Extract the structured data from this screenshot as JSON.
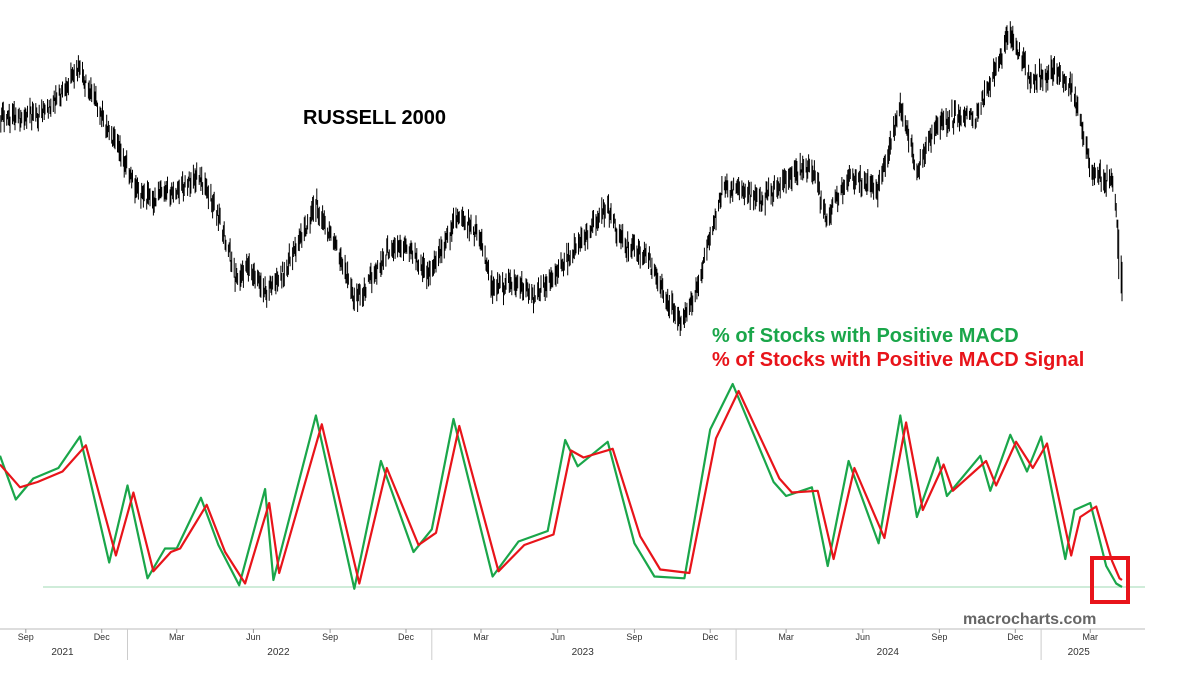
{
  "chart_data": [
    {
      "type": "line",
      "title": "RUSSELL 2000",
      "note": "values are relative index levels read from the unlabeled price panel",
      "series": [
        {
          "values": [
            {
              "date": "2021-08-01",
              "value": 73
            },
            {
              "date": "2021-09-01",
              "value": 72
            },
            {
              "date": "2021-10-01",
              "value": 75
            },
            {
              "date": "2021-11-01",
              "value": 88
            },
            {
              "date": "2021-11-20",
              "value": 80
            },
            {
              "date": "2021-12-10",
              "value": 67
            },
            {
              "date": "2022-01-15",
              "value": 47
            },
            {
              "date": "2022-02-01",
              "value": 45
            },
            {
              "date": "2022-03-01",
              "value": 48
            },
            {
              "date": "2022-03-28",
              "value": 53
            },
            {
              "date": "2022-04-20",
              "value": 40
            },
            {
              "date": "2022-05-12",
              "value": 18
            },
            {
              "date": "2022-05-25",
              "value": 22
            },
            {
              "date": "2022-06-17",
              "value": 14
            },
            {
              "date": "2022-07-10",
              "value": 22
            },
            {
              "date": "2022-08-16",
              "value": 43
            },
            {
              "date": "2022-09-10",
              "value": 28
            },
            {
              "date": "2022-09-30",
              "value": 12
            },
            {
              "date": "2022-10-15",
              "value": 16
            },
            {
              "date": "2022-11-10",
              "value": 28
            },
            {
              "date": "2022-12-01",
              "value": 30
            },
            {
              "date": "2022-12-28",
              "value": 20
            },
            {
              "date": "2023-02-02",
              "value": 40
            },
            {
              "date": "2023-03-01",
              "value": 32
            },
            {
              "date": "2023-03-15",
              "value": 15
            },
            {
              "date": "2023-04-10",
              "value": 17
            },
            {
              "date": "2023-05-04",
              "value": 13
            },
            {
              "date": "2023-05-30",
              "value": 20
            },
            {
              "date": "2023-07-31",
              "value": 42
            },
            {
              "date": "2023-08-20",
              "value": 30
            },
            {
              "date": "2023-09-15",
              "value": 26
            },
            {
              "date": "2023-10-27",
              "value": 3
            },
            {
              "date": "2023-11-15",
              "value": 16
            },
            {
              "date": "2023-12-15",
              "value": 48
            },
            {
              "date": "2024-01-10",
              "value": 48
            },
            {
              "date": "2024-02-01",
              "value": 45
            },
            {
              "date": "2024-03-31",
              "value": 57
            },
            {
              "date": "2024-04-19",
              "value": 38
            },
            {
              "date": "2024-05-15",
              "value": 53
            },
            {
              "date": "2024-06-20",
              "value": 48
            },
            {
              "date": "2024-07-16",
              "value": 76
            },
            {
              "date": "2024-08-05",
              "value": 55
            },
            {
              "date": "2024-08-30",
              "value": 70
            },
            {
              "date": "2024-09-15",
              "value": 72
            },
            {
              "date": "2024-10-15",
              "value": 72
            },
            {
              "date": "2024-11-25",
              "value": 100
            },
            {
              "date": "2024-12-20",
              "value": 84
            },
            {
              "date": "2025-01-20",
              "value": 88
            },
            {
              "date": "2025-02-10",
              "value": 80
            },
            {
              "date": "2025-03-01",
              "value": 55
            },
            {
              "date": "2025-03-28",
              "value": 50
            },
            {
              "date": "2025-04-08",
              "value": 22
            }
          ]
        }
      ]
    },
    {
      "type": "line",
      "title": "",
      "note": "oscillator values in percent (0-100 scale), panel has no printed value axis",
      "series": [
        {
          "name": "% of Stocks with Positive MACD",
          "color": "#1aa64a",
          "values": [
            {
              "date": "2021-08-01",
              "value": 75
            },
            {
              "date": "2021-08-20",
              "value": 50
            },
            {
              "date": "2021-09-10",
              "value": 62
            },
            {
              "date": "2021-10-10",
              "value": 68
            },
            {
              "date": "2021-11-05",
              "value": 86
            },
            {
              "date": "2021-12-10",
              "value": 14
            },
            {
              "date": "2022-01-01",
              "value": 58
            },
            {
              "date": "2022-01-25",
              "value": 5
            },
            {
              "date": "2022-02-15",
              "value": 22
            },
            {
              "date": "2022-03-01",
              "value": 22
            },
            {
              "date": "2022-03-30",
              "value": 51
            },
            {
              "date": "2022-04-20",
              "value": 24
            },
            {
              "date": "2022-05-15",
              "value": 1
            },
            {
              "date": "2022-06-15",
              "value": 56
            },
            {
              "date": "2022-06-25",
              "value": 4
            },
            {
              "date": "2022-08-15",
              "value": 98
            },
            {
              "date": "2022-09-30",
              "value": -1
            },
            {
              "date": "2022-11-01",
              "value": 72
            },
            {
              "date": "2022-12-10",
              "value": 20
            },
            {
              "date": "2023-01-01",
              "value": 33
            },
            {
              "date": "2023-01-27",
              "value": 96
            },
            {
              "date": "2023-03-15",
              "value": 6
            },
            {
              "date": "2023-04-15",
              "value": 26
            },
            {
              "date": "2023-05-20",
              "value": 32
            },
            {
              "date": "2023-06-10",
              "value": 84
            },
            {
              "date": "2023-06-25",
              "value": 69
            },
            {
              "date": "2023-07-31",
              "value": 83
            },
            {
              "date": "2023-09-01",
              "value": 25
            },
            {
              "date": "2023-09-25",
              "value": 6
            },
            {
              "date": "2023-10-31",
              "value": 5
            },
            {
              "date": "2023-12-01",
              "value": 90
            },
            {
              "date": "2023-12-28",
              "value": 116
            },
            {
              "date": "2024-02-15",
              "value": 60
            },
            {
              "date": "2024-03-01",
              "value": 52
            },
            {
              "date": "2024-04-01",
              "value": 57
            },
            {
              "date": "2024-04-20",
              "value": 12
            },
            {
              "date": "2024-05-15",
              "value": 72
            },
            {
              "date": "2024-06-20",
              "value": 25
            },
            {
              "date": "2024-07-16",
              "value": 98
            },
            {
              "date": "2024-08-05",
              "value": 40
            },
            {
              "date": "2024-08-30",
              "value": 74
            },
            {
              "date": "2024-09-10",
              "value": 52
            },
            {
              "date": "2024-10-20",
              "value": 75
            },
            {
              "date": "2024-11-01",
              "value": 55
            },
            {
              "date": "2024-11-25",
              "value": 87
            },
            {
              "date": "2024-12-15",
              "value": 66
            },
            {
              "date": "2025-01-01",
              "value": 86
            },
            {
              "date": "2025-01-30",
              "value": 16
            },
            {
              "date": "2025-02-10",
              "value": 44
            },
            {
              "date": "2025-03-01",
              "value": 48
            },
            {
              "date": "2025-03-20",
              "value": 12
            },
            {
              "date": "2025-04-01",
              "value": 2
            },
            {
              "date": "2025-04-08",
              "value": 0
            }
          ]
        },
        {
          "name": "% of Stocks with Positive MACD Signal",
          "color": "#e8141a",
          "values": [
            {
              "date": "2021-08-01",
              "value": 70
            },
            {
              "date": "2021-08-25",
              "value": 57
            },
            {
              "date": "2021-09-15",
              "value": 60
            },
            {
              "date": "2021-10-15",
              "value": 66
            },
            {
              "date": "2021-11-12",
              "value": 81
            },
            {
              "date": "2021-12-18",
              "value": 18
            },
            {
              "date": "2022-01-08",
              "value": 54
            },
            {
              "date": "2022-02-01",
              "value": 9
            },
            {
              "date": "2022-02-22",
              "value": 20
            },
            {
              "date": "2022-03-05",
              "value": 22
            },
            {
              "date": "2022-04-06",
              "value": 47
            },
            {
              "date": "2022-04-28",
              "value": 20
            },
            {
              "date": "2022-05-22",
              "value": 2
            },
            {
              "date": "2022-06-20",
              "value": 48
            },
            {
              "date": "2022-07-02",
              "value": 8
            },
            {
              "date": "2022-08-22",
              "value": 93
            },
            {
              "date": "2022-10-06",
              "value": 2
            },
            {
              "date": "2022-11-08",
              "value": 68
            },
            {
              "date": "2022-12-16",
              "value": 24
            },
            {
              "date": "2023-01-06",
              "value": 31
            },
            {
              "date": "2023-02-03",
              "value": 92
            },
            {
              "date": "2023-03-22",
              "value": 9
            },
            {
              "date": "2023-04-22",
              "value": 24
            },
            {
              "date": "2023-05-27",
              "value": 30
            },
            {
              "date": "2023-06-17",
              "value": 78
            },
            {
              "date": "2023-07-02",
              "value": 74
            },
            {
              "date": "2023-08-06",
              "value": 79
            },
            {
              "date": "2023-09-08",
              "value": 29
            },
            {
              "date": "2023-10-02",
              "value": 10
            },
            {
              "date": "2023-11-06",
              "value": 8
            },
            {
              "date": "2023-12-08",
              "value": 85
            },
            {
              "date": "2024-01-04",
              "value": 112
            },
            {
              "date": "2024-02-22",
              "value": 62
            },
            {
              "date": "2024-03-08",
              "value": 54
            },
            {
              "date": "2024-04-08",
              "value": 55
            },
            {
              "date": "2024-04-27",
              "value": 16
            },
            {
              "date": "2024-05-22",
              "value": 68
            },
            {
              "date": "2024-06-27",
              "value": 28
            },
            {
              "date": "2024-07-23",
              "value": 94
            },
            {
              "date": "2024-08-12",
              "value": 44
            },
            {
              "date": "2024-09-06",
              "value": 70
            },
            {
              "date": "2024-09-17",
              "value": 55
            },
            {
              "date": "2024-10-27",
              "value": 72
            },
            {
              "date": "2024-11-08",
              "value": 58
            },
            {
              "date": "2024-12-02",
              "value": 83
            },
            {
              "date": "2024-12-22",
              "value": 68
            },
            {
              "date": "2025-01-08",
              "value": 82
            },
            {
              "date": "2025-02-06",
              "value": 18
            },
            {
              "date": "2025-02-17",
              "value": 40
            },
            {
              "date": "2025-03-08",
              "value": 46
            },
            {
              "date": "2025-03-27",
              "value": 15
            },
            {
              "date": "2025-04-05",
              "value": 5
            },
            {
              "date": "2025-04-08",
              "value": 4
            }
          ]
        }
      ]
    }
  ],
  "legend": {
    "macd_label": "% of Stocks with Positive MACD",
    "signal_label": "% of Stocks with Positive MACD Signal",
    "macd_color": "#1aa64a",
    "signal_color": "#e8141a"
  },
  "watermark": "macrocharts.com",
  "highlight_box_color": "#e8141a",
  "x_axis": {
    "months": [
      {
        "label": "Sep",
        "date": "2021-09-01"
      },
      {
        "label": "Dec",
        "date": "2021-12-01"
      },
      {
        "label": "Mar",
        "date": "2022-03-01"
      },
      {
        "label": "Jun",
        "date": "2022-06-01"
      },
      {
        "label": "Sep",
        "date": "2022-09-01"
      },
      {
        "label": "Dec",
        "date": "2022-12-01"
      },
      {
        "label": "Mar",
        "date": "2023-03-01"
      },
      {
        "label": "Jun",
        "date": "2023-06-01"
      },
      {
        "label": "Sep",
        "date": "2023-09-01"
      },
      {
        "label": "Dec",
        "date": "2023-12-01"
      },
      {
        "label": "Mar",
        "date": "2024-03-01"
      },
      {
        "label": "Jun",
        "date": "2024-06-01"
      },
      {
        "label": "Sep",
        "date": "2024-09-01"
      },
      {
        "label": "Dec",
        "date": "2024-12-01"
      },
      {
        "label": "Mar",
        "date": "2025-03-01"
      }
    ],
    "years": [
      {
        "label": "2021",
        "date": "2021-10-15"
      },
      {
        "label": "2022",
        "date": "2022-07-01"
      },
      {
        "label": "2023",
        "date": "2023-07-01"
      },
      {
        "label": "2024",
        "date": "2024-07-01"
      },
      {
        "label": "2025",
        "date": "2025-02-15"
      }
    ]
  }
}
